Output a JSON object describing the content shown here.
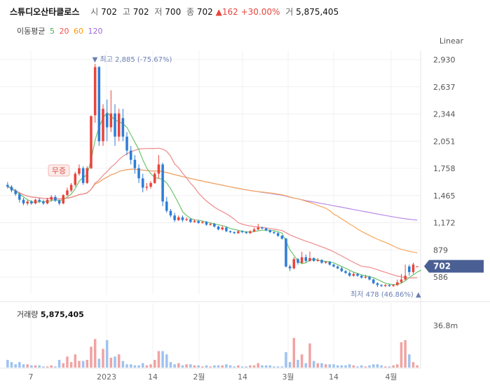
{
  "header": {
    "name": "스튜디오산타클로스",
    "open_label": "시",
    "open": "702",
    "high_label": "고",
    "high": "702",
    "low_label": "저",
    "low": "700",
    "close_label": "종",
    "close": "702",
    "change_arrow": "▲",
    "change": "162",
    "change_pct": "+30.00%",
    "volume_label": "거",
    "volume": "5,875,405"
  },
  "ma_legend": {
    "label": "이동평균",
    "periods": [
      {
        "value": "5",
        "color": "#4caf50"
      },
      {
        "value": "20",
        "color": "#ef5350"
      },
      {
        "value": "60",
        "color": "#ff9800"
      },
      {
        "value": "120",
        "color": "#9c6ad6"
      }
    ]
  },
  "scale_button": "Linear",
  "colors": {
    "up": "#e8453c",
    "down": "#2e7dd7",
    "vol_up": "#f1a3a3",
    "vol_down": "#9ec3f0",
    "badge": "#4a5f94"
  },
  "chart_data": {
    "type": "candlestick",
    "y_ticks": [
      "2,930",
      "2,637",
      "2,344",
      "2,051",
      "1,758",
      "1,465",
      "1,172",
      "879",
      "586"
    ],
    "x_ticks": [
      "7",
      "2023",
      "14",
      "2월",
      "14",
      "3월",
      "14",
      "4월"
    ],
    "ylim": [
      400,
      3000
    ],
    "current_price": "702",
    "high_marker": {
      "label": "최고",
      "value": "2,885",
      "pct": "(-75.67%)",
      "arrow": "▼"
    },
    "low_marker": {
      "label": "최저",
      "value": "478",
      "pct": "(46.86%)",
      "arrow": "▲"
    },
    "event_label": "무증",
    "volume_title": "거래량",
    "volume_value": "5,875,405",
    "volume_tick": "36.8m",
    "volume_max": 46,
    "candles": [
      [
        1580,
        1560,
        1610,
        1540,
        7
      ],
      [
        1560,
        1520,
        1575,
        1500,
        5
      ],
      [
        1520,
        1480,
        1535,
        1460,
        3
      ],
      [
        1480,
        1420,
        1495,
        1390,
        5
      ],
      [
        1420,
        1380,
        1440,
        1360,
        3
      ],
      [
        1380,
        1400,
        1420,
        1360,
        3
      ],
      [
        1400,
        1380,
        1415,
        1365,
        2
      ],
      [
        1380,
        1420,
        1430,
        1370,
        2
      ],
      [
        1420,
        1400,
        1440,
        1385,
        2
      ],
      [
        1400,
        1380,
        1420,
        1365,
        1
      ],
      [
        1380,
        1420,
        1440,
        1370,
        1
      ],
      [
        1420,
        1450,
        1470,
        1400,
        2
      ],
      [
        1450,
        1410,
        1470,
        1395,
        1
      ],
      [
        1410,
        1380,
        1420,
        1360,
        7
      ],
      [
        1380,
        1470,
        1480,
        1370,
        4
      ],
      [
        1470,
        1520,
        1550,
        1460,
        10
      ],
      [
        1520,
        1580,
        1600,
        1500,
        5
      ],
      [
        1580,
        1700,
        1720,
        1560,
        12
      ],
      [
        1700,
        1760,
        1800,
        1680,
        6
      ],
      [
        1760,
        1600,
        1780,
        1580,
        6
      ],
      [
        1600,
        1760,
        1780,
        1590,
        7
      ],
      [
        1760,
        2320,
        2330,
        1750,
        19
      ],
      [
        2330,
        2850,
        2885,
        2250,
        26
      ],
      [
        2850,
        2050,
        2860,
        2000,
        8
      ],
      [
        2050,
        2400,
        2450,
        2000,
        17
      ],
      [
        2350,
        2200,
        2500,
        2050,
        25
      ],
      [
        2200,
        2350,
        2600,
        2150,
        9
      ],
      [
        2350,
        2100,
        2450,
        2000,
        10
      ],
      [
        2100,
        2350,
        2400,
        2050,
        12
      ],
      [
        2300,
        2100,
        2400,
        2050,
        6
      ],
      [
        2100,
        1950,
        2150,
        1900,
        3
      ],
      [
        1950,
        1850,
        2000,
        1800,
        3
      ],
      [
        1850,
        1760,
        1900,
        1700,
        2
      ],
      [
        1760,
        1650,
        1800,
        1600,
        2
      ],
      [
        1650,
        1550,
        1700,
        1500,
        4
      ],
      [
        1550,
        1560,
        1600,
        1520,
        2
      ],
      [
        1560,
        1600,
        1620,
        1540,
        3
      ],
      [
        1600,
        1700,
        1720,
        1590,
        7
      ],
      [
        1700,
        1800,
        1900,
        1650,
        15
      ],
      [
        1800,
        1400,
        1820,
        1350,
        15
      ],
      [
        1400,
        1300,
        1450,
        1280,
        12
      ],
      [
        1300,
        1250,
        1320,
        1230,
        5
      ],
      [
        1250,
        1200,
        1280,
        1180,
        3
      ],
      [
        1200,
        1230,
        1250,
        1190,
        4
      ],
      [
        1230,
        1200,
        1250,
        1180,
        2
      ],
      [
        1200,
        1210,
        1230,
        1190,
        3
      ],
      [
        1210,
        1180,
        1220,
        1170,
        3
      ],
      [
        1180,
        1190,
        1210,
        1170,
        2
      ],
      [
        1190,
        1170,
        1200,
        1160,
        2
      ],
      [
        1170,
        1180,
        1190,
        1160,
        1
      ],
      [
        1180,
        1150,
        1190,
        1140,
        2
      ],
      [
        1150,
        1160,
        1170,
        1140,
        1
      ],
      [
        1160,
        1130,
        1170,
        1120,
        2
      ],
      [
        1130,
        1100,
        1140,
        1090,
        2
      ],
      [
        1100,
        1120,
        1140,
        1090,
        2
      ],
      [
        1120,
        1080,
        1130,
        1070,
        3
      ],
      [
        1080,
        1070,
        1090,
        1060,
        2
      ],
      [
        1070,
        1060,
        1080,
        1050,
        1
      ],
      [
        1060,
        1080,
        1090,
        1050,
        2
      ],
      [
        1080,
        1070,
        1090,
        1060,
        1
      ],
      [
        1070,
        1060,
        1080,
        1050,
        1
      ],
      [
        1060,
        1080,
        1090,
        1050,
        2
      ],
      [
        1080,
        1100,
        1120,
        1070,
        2
      ],
      [
        1100,
        1120,
        1160,
        1090,
        4
      ],
      [
        1120,
        1110,
        1130,
        1100,
        2
      ],
      [
        1110,
        1090,
        1120,
        1080,
        2
      ],
      [
        1090,
        1070,
        1100,
        1060,
        2
      ],
      [
        1070,
        1060,
        1080,
        1050,
        1
      ],
      [
        1060,
        1030,
        1070,
        1020,
        1
      ],
      [
        1030,
        1000,
        1040,
        990,
        1
      ],
      [
        1000,
        700,
        1010,
        690,
        14
      ],
      [
        700,
        680,
        720,
        650,
        5
      ],
      [
        680,
        780,
        800,
        670,
        27
      ],
      [
        780,
        740,
        790,
        720,
        7
      ],
      [
        740,
        800,
        860,
        730,
        12
      ],
      [
        800,
        760,
        830,
        740,
        4
      ],
      [
        760,
        790,
        860,
        750,
        22
      ],
      [
        790,
        760,
        800,
        750,
        6
      ],
      [
        760,
        770,
        790,
        750,
        4
      ],
      [
        770,
        740,
        780,
        730,
        4
      ],
      [
        740,
        750,
        760,
        730,
        3
      ],
      [
        750,
        720,
        760,
        710,
        3
      ],
      [
        720,
        700,
        730,
        690,
        3
      ],
      [
        700,
        680,
        710,
        670,
        2
      ],
      [
        680,
        650,
        700,
        640,
        2
      ],
      [
        650,
        630,
        660,
        620,
        2
      ],
      [
        630,
        600,
        650,
        590,
        3
      ],
      [
        600,
        620,
        640,
        590,
        2
      ],
      [
        620,
        600,
        630,
        590,
        1
      ],
      [
        600,
        580,
        610,
        570,
        2
      ],
      [
        580,
        590,
        610,
        570,
        1
      ],
      [
        590,
        560,
        600,
        550,
        2
      ],
      [
        560,
        520,
        570,
        510,
        3
      ],
      [
        520,
        500,
        530,
        480,
        3
      ],
      [
        500,
        490,
        510,
        480,
        2
      ],
      [
        490,
        500,
        510,
        478,
        1
      ],
      [
        500,
        490,
        510,
        480,
        1
      ],
      [
        490,
        500,
        510,
        480,
        2
      ],
      [
        500,
        530,
        560,
        490,
        3
      ],
      [
        530,
        560,
        620,
        520,
        23
      ],
      [
        560,
        600,
        720,
        550,
        25
      ],
      [
        700,
        640,
        720,
        600,
        12
      ],
      [
        640,
        720,
        740,
        620,
        5
      ],
      [
        702,
        702,
        702,
        700,
        2
      ]
    ],
    "ma5": [
      1570,
      1540,
      1510,
      1480,
      1450,
      1420,
      1400,
      1390,
      1400,
      1400,
      1400,
      1410,
      1420,
      1410,
      1420,
      1450,
      1480,
      1540,
      1620,
      1660,
      1690,
      1850,
      2060,
      2200,
      2300,
      2360,
      2320,
      2280,
      2260,
      2240,
      2200,
      2120,
      2040,
      1960,
      1850,
      1760,
      1700,
      1660,
      1650,
      1640,
      1600,
      1540,
      1460,
      1380,
      1290,
      1250,
      1220,
      1200,
      1200,
      1190,
      1180,
      1170,
      1160,
      1150,
      1140,
      1130,
      1110,
      1100,
      1090,
      1080,
      1075,
      1070,
      1075,
      1085,
      1090,
      1092,
      1090,
      1085,
      1075,
      1060,
      970,
      880,
      820,
      760,
      730,
      740,
      770,
      780,
      770,
      760,
      755,
      750,
      740,
      720,
      700,
      680,
      660,
      640,
      625,
      610,
      600,
      590,
      580,
      560,
      540,
      520,
      510,
      505,
      505,
      520,
      545,
      580,
      610,
      640,
      660
    ]
  }
}
